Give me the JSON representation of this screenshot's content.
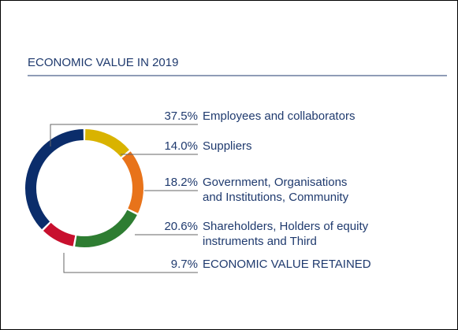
{
  "chart_data": {
    "type": "donut",
    "title": "ECONOMIC VALUE IN 2019",
    "categories": [
      "Employees and collaborators",
      "Suppliers",
      "Government, Organisations\nand Institutions, Community",
      "Shareholders, Holders of equity\ninstruments and Third",
      "ECONOMIC VALUE RETAINED"
    ],
    "values": [
      37.5,
      14.0,
      18.2,
      20.6,
      9.7
    ],
    "value_labels": [
      "37.5%",
      "14.0%",
      "18.2%",
      "20.6%",
      "9.7%"
    ],
    "colors": [
      "#0b2d6b",
      "#d9b300",
      "#e8731a",
      "#2e7d32",
      "#c8102e"
    ]
  }
}
